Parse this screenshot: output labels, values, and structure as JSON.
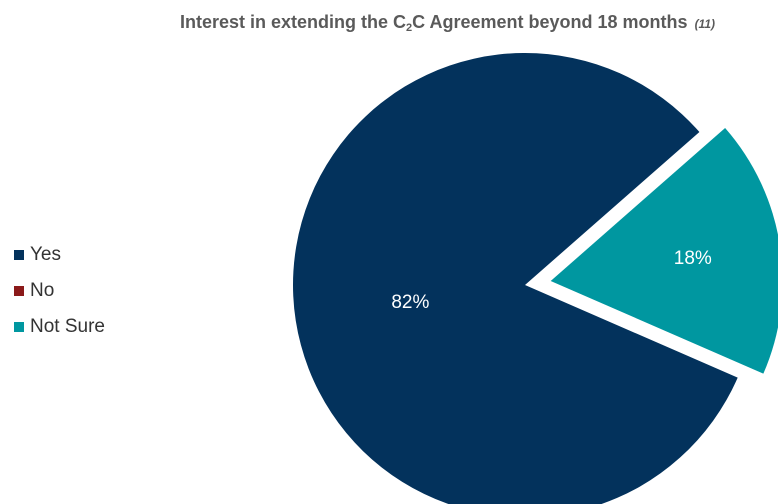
{
  "chart_data": {
    "type": "pie",
    "title": {
      "main": "Interest in extending the C",
      "subscript": "2",
      "rest": "C Agreement beyond 18 months",
      "note": "(11)"
    },
    "legend_position": "left",
    "slices": [
      {
        "label": "Yes",
        "value": 82,
        "display": "82%",
        "color": "#03325c",
        "exploded": false
      },
      {
        "label": "No",
        "value": 0,
        "display": "",
        "color": "#8b1a1a",
        "exploded": false
      },
      {
        "label": "Not Sure",
        "value": 18,
        "display": "18%",
        "color": "#0097a0",
        "exploded": true
      }
    ]
  }
}
